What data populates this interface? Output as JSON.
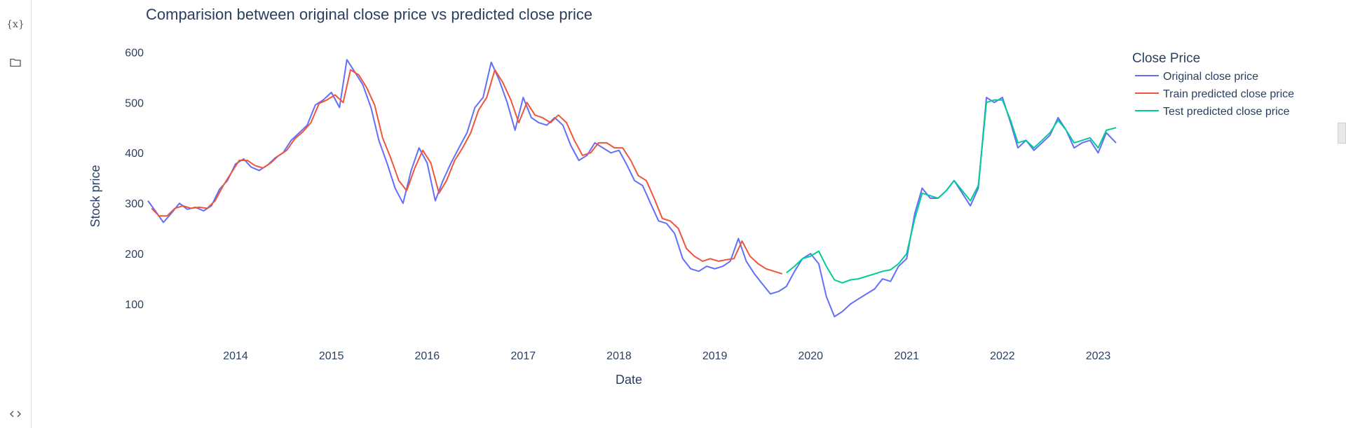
{
  "sidebar": {
    "variables_icon_glyph": "{x}",
    "icons": [
      "variables-icon",
      "folder-icon",
      "code-icon"
    ]
  },
  "chart_data": {
    "type": "line",
    "title": "Comparision between original close price vs predicted close price",
    "xlabel": "Date",
    "ylabel": "Stock price",
    "x_ticks": [
      "2014",
      "2015",
      "2016",
      "2017",
      "2018",
      "2019",
      "2020",
      "2021",
      "2022",
      "2023"
    ],
    "y_ticks": [
      100,
      200,
      300,
      400,
      500,
      600
    ],
    "xlim": [
      "2013-02-01",
      "2023-03-10"
    ],
    "ylim": [
      50,
      620
    ],
    "grid": false,
    "legend": {
      "title": "Close Price",
      "placement": "top-right"
    },
    "series": [
      {
        "name": "Original close price",
        "color": "#636efa",
        "points": [
          [
            "2013-02-01",
            305
          ],
          [
            "2013-03-01",
            285
          ],
          [
            "2013-04-01",
            262
          ],
          [
            "2013-05-01",
            280
          ],
          [
            "2013-06-01",
            300
          ],
          [
            "2013-07-01",
            288
          ],
          [
            "2013-08-01",
            292
          ],
          [
            "2013-09-01",
            285
          ],
          [
            "2013-10-01",
            295
          ],
          [
            "2013-11-01",
            328
          ],
          [
            "2013-12-01",
            345
          ],
          [
            "2014-01-01",
            378
          ],
          [
            "2014-02-01",
            388
          ],
          [
            "2014-03-01",
            372
          ],
          [
            "2014-04-01",
            365
          ],
          [
            "2014-05-01",
            375
          ],
          [
            "2014-06-01",
            390
          ],
          [
            "2014-07-01",
            400
          ],
          [
            "2014-08-01",
            425
          ],
          [
            "2014-09-01",
            440
          ],
          [
            "2014-10-01",
            455
          ],
          [
            "2014-11-01",
            495
          ],
          [
            "2014-12-01",
            505
          ],
          [
            "2015-01-01",
            520
          ],
          [
            "2015-02-01",
            490
          ],
          [
            "2015-03-01",
            585
          ],
          [
            "2015-04-01",
            560
          ],
          [
            "2015-05-01",
            535
          ],
          [
            "2015-06-01",
            490
          ],
          [
            "2015-07-01",
            425
          ],
          [
            "2015-08-01",
            380
          ],
          [
            "2015-09-01",
            330
          ],
          [
            "2015-10-01",
            300
          ],
          [
            "2015-11-01",
            365
          ],
          [
            "2015-12-01",
            410
          ],
          [
            "2016-01-01",
            380
          ],
          [
            "2016-02-01",
            305
          ],
          [
            "2016-03-01",
            345
          ],
          [
            "2016-04-01",
            380
          ],
          [
            "2016-05-01",
            410
          ],
          [
            "2016-06-01",
            440
          ],
          [
            "2016-07-01",
            490
          ],
          [
            "2016-08-01",
            510
          ],
          [
            "2016-09-01",
            580
          ],
          [
            "2016-10-01",
            545
          ],
          [
            "2016-11-01",
            500
          ],
          [
            "2016-12-01",
            445
          ],
          [
            "2017-01-01",
            510
          ],
          [
            "2017-02-01",
            470
          ],
          [
            "2017-03-01",
            460
          ],
          [
            "2017-04-01",
            455
          ],
          [
            "2017-05-01",
            470
          ],
          [
            "2017-06-01",
            455
          ],
          [
            "2017-07-01",
            415
          ],
          [
            "2017-08-01",
            385
          ],
          [
            "2017-09-01",
            395
          ],
          [
            "2017-10-01",
            420
          ],
          [
            "2017-11-01",
            410
          ],
          [
            "2017-12-01",
            400
          ],
          [
            "2018-01-01",
            405
          ],
          [
            "2018-02-01",
            375
          ],
          [
            "2018-03-01",
            345
          ],
          [
            "2018-04-01",
            335
          ],
          [
            "2018-05-01",
            300
          ],
          [
            "2018-06-01",
            265
          ],
          [
            "2018-07-01",
            260
          ],
          [
            "2018-08-01",
            240
          ],
          [
            "2018-09-01",
            190
          ],
          [
            "2018-10-01",
            170
          ],
          [
            "2018-11-01",
            165
          ],
          [
            "2018-12-01",
            175
          ],
          [
            "2019-01-01",
            170
          ],
          [
            "2019-02-01",
            175
          ],
          [
            "2019-03-01",
            185
          ],
          [
            "2019-04-01",
            230
          ],
          [
            "2019-05-01",
            185
          ],
          [
            "2019-06-01",
            160
          ],
          [
            "2019-07-01",
            140
          ],
          [
            "2019-08-01",
            120
          ],
          [
            "2019-09-01",
            125
          ],
          [
            "2019-10-01",
            135
          ],
          [
            "2019-11-01",
            165
          ],
          [
            "2019-12-01",
            190
          ],
          [
            "2020-01-01",
            200
          ],
          [
            "2020-02-01",
            180
          ],
          [
            "2020-03-01",
            115
          ],
          [
            "2020-04-01",
            75
          ],
          [
            "2020-05-01",
            85
          ],
          [
            "2020-06-01",
            100
          ],
          [
            "2020-07-01",
            110
          ],
          [
            "2020-08-01",
            120
          ],
          [
            "2020-09-01",
            130
          ],
          [
            "2020-10-01",
            150
          ],
          [
            "2020-11-01",
            145
          ],
          [
            "2020-12-01",
            175
          ],
          [
            "2021-01-01",
            190
          ],
          [
            "2021-02-01",
            280
          ],
          [
            "2021-03-01",
            330
          ],
          [
            "2021-04-01",
            310
          ],
          [
            "2021-05-01",
            310
          ],
          [
            "2021-06-01",
            325
          ],
          [
            "2021-07-01",
            345
          ],
          [
            "2021-08-01",
            320
          ],
          [
            "2021-09-01",
            295
          ],
          [
            "2021-10-01",
            330
          ],
          [
            "2021-11-01",
            510
          ],
          [
            "2021-12-01",
            500
          ],
          [
            "2022-01-01",
            510
          ],
          [
            "2022-02-01",
            460
          ],
          [
            "2022-03-01",
            410
          ],
          [
            "2022-04-01",
            425
          ],
          [
            "2022-05-01",
            405
          ],
          [
            "2022-06-01",
            420
          ],
          [
            "2022-07-01",
            435
          ],
          [
            "2022-08-01",
            470
          ],
          [
            "2022-09-01",
            445
          ],
          [
            "2022-10-01",
            410
          ],
          [
            "2022-11-01",
            420
          ],
          [
            "2022-12-01",
            425
          ],
          [
            "2023-01-01",
            400
          ],
          [
            "2023-02-01",
            440
          ],
          [
            "2023-03-10",
            420
          ]
        ]
      },
      {
        "name": "Train predicted close price",
        "color": "#ef553b",
        "points": [
          [
            "2013-02-15",
            290
          ],
          [
            "2013-03-15",
            275
          ],
          [
            "2013-04-15",
            275
          ],
          [
            "2013-05-15",
            290
          ],
          [
            "2013-06-15",
            295
          ],
          [
            "2013-07-15",
            290
          ],
          [
            "2013-08-15",
            292
          ],
          [
            "2013-09-15",
            290
          ],
          [
            "2013-10-15",
            305
          ],
          [
            "2013-11-15",
            335
          ],
          [
            "2013-12-15",
            360
          ],
          [
            "2014-01-15",
            385
          ],
          [
            "2014-02-15",
            385
          ],
          [
            "2014-03-15",
            375
          ],
          [
            "2014-04-15",
            370
          ],
          [
            "2014-05-15",
            380
          ],
          [
            "2014-06-15",
            395
          ],
          [
            "2014-07-15",
            405
          ],
          [
            "2014-08-15",
            428
          ],
          [
            "2014-09-15",
            442
          ],
          [
            "2014-10-15",
            460
          ],
          [
            "2014-11-15",
            498
          ],
          [
            "2014-12-15",
            505
          ],
          [
            "2015-01-15",
            515
          ],
          [
            "2015-02-15",
            500
          ],
          [
            "2015-03-15",
            565
          ],
          [
            "2015-04-15",
            555
          ],
          [
            "2015-05-15",
            530
          ],
          [
            "2015-06-15",
            495
          ],
          [
            "2015-07-15",
            430
          ],
          [
            "2015-08-15",
            390
          ],
          [
            "2015-09-15",
            345
          ],
          [
            "2015-10-15",
            325
          ],
          [
            "2015-11-15",
            370
          ],
          [
            "2015-12-15",
            405
          ],
          [
            "2016-01-15",
            380
          ],
          [
            "2016-02-15",
            320
          ],
          [
            "2016-03-15",
            345
          ],
          [
            "2016-04-15",
            385
          ],
          [
            "2016-05-15",
            410
          ],
          [
            "2016-06-15",
            440
          ],
          [
            "2016-07-15",
            485
          ],
          [
            "2016-08-15",
            510
          ],
          [
            "2016-09-15",
            565
          ],
          [
            "2016-10-15",
            540
          ],
          [
            "2016-11-15",
            505
          ],
          [
            "2016-12-15",
            460
          ],
          [
            "2017-01-15",
            500
          ],
          [
            "2017-02-15",
            475
          ],
          [
            "2017-03-15",
            470
          ],
          [
            "2017-04-15",
            460
          ],
          [
            "2017-05-15",
            475
          ],
          [
            "2017-06-15",
            460
          ],
          [
            "2017-07-15",
            425
          ],
          [
            "2017-08-15",
            395
          ],
          [
            "2017-09-15",
            400
          ],
          [
            "2017-10-15",
            420
          ],
          [
            "2017-11-15",
            420
          ],
          [
            "2017-12-15",
            410
          ],
          [
            "2018-01-15",
            410
          ],
          [
            "2018-02-15",
            385
          ],
          [
            "2018-03-15",
            355
          ],
          [
            "2018-04-15",
            345
          ],
          [
            "2018-05-15",
            310
          ],
          [
            "2018-06-15",
            270
          ],
          [
            "2018-07-15",
            265
          ],
          [
            "2018-08-15",
            250
          ],
          [
            "2018-09-15",
            210
          ],
          [
            "2018-10-15",
            195
          ],
          [
            "2018-11-15",
            185
          ],
          [
            "2018-12-15",
            190
          ],
          [
            "2019-01-15",
            185
          ],
          [
            "2019-02-15",
            188
          ],
          [
            "2019-03-15",
            190
          ],
          [
            "2019-04-15",
            225
          ],
          [
            "2019-05-15",
            195
          ],
          [
            "2019-06-15",
            180
          ],
          [
            "2019-07-15",
            170
          ],
          [
            "2019-08-15",
            165
          ],
          [
            "2019-09-15",
            160
          ]
        ]
      },
      {
        "name": "Test predicted close price",
        "color": "#00cc96",
        "points": [
          [
            "2019-10-01",
            162
          ],
          [
            "2019-11-01",
            175
          ],
          [
            "2019-12-01",
            190
          ],
          [
            "2020-01-01",
            195
          ],
          [
            "2020-02-01",
            205
          ],
          [
            "2020-03-01",
            175
          ],
          [
            "2020-04-01",
            148
          ],
          [
            "2020-05-01",
            142
          ],
          [
            "2020-06-01",
            148
          ],
          [
            "2020-07-01",
            150
          ],
          [
            "2020-08-01",
            155
          ],
          [
            "2020-09-01",
            160
          ],
          [
            "2020-10-01",
            165
          ],
          [
            "2020-11-01",
            168
          ],
          [
            "2020-12-01",
            180
          ],
          [
            "2021-01-01",
            200
          ],
          [
            "2021-02-01",
            270
          ],
          [
            "2021-03-01",
            320
          ],
          [
            "2021-04-01",
            315
          ],
          [
            "2021-05-01",
            310
          ],
          [
            "2021-06-01",
            325
          ],
          [
            "2021-07-01",
            345
          ],
          [
            "2021-08-01",
            325
          ],
          [
            "2021-09-01",
            305
          ],
          [
            "2021-10-01",
            335
          ],
          [
            "2021-11-01",
            500
          ],
          [
            "2021-12-01",
            505
          ],
          [
            "2022-01-01",
            505
          ],
          [
            "2022-02-01",
            465
          ],
          [
            "2022-03-01",
            420
          ],
          [
            "2022-04-01",
            425
          ],
          [
            "2022-05-01",
            410
          ],
          [
            "2022-06-01",
            425
          ],
          [
            "2022-07-01",
            440
          ],
          [
            "2022-08-01",
            465
          ],
          [
            "2022-09-01",
            445
          ],
          [
            "2022-10-01",
            420
          ],
          [
            "2022-11-01",
            425
          ],
          [
            "2022-12-01",
            430
          ],
          [
            "2023-01-01",
            410
          ],
          [
            "2023-02-01",
            445
          ],
          [
            "2023-03-10",
            450
          ]
        ]
      }
    ]
  }
}
